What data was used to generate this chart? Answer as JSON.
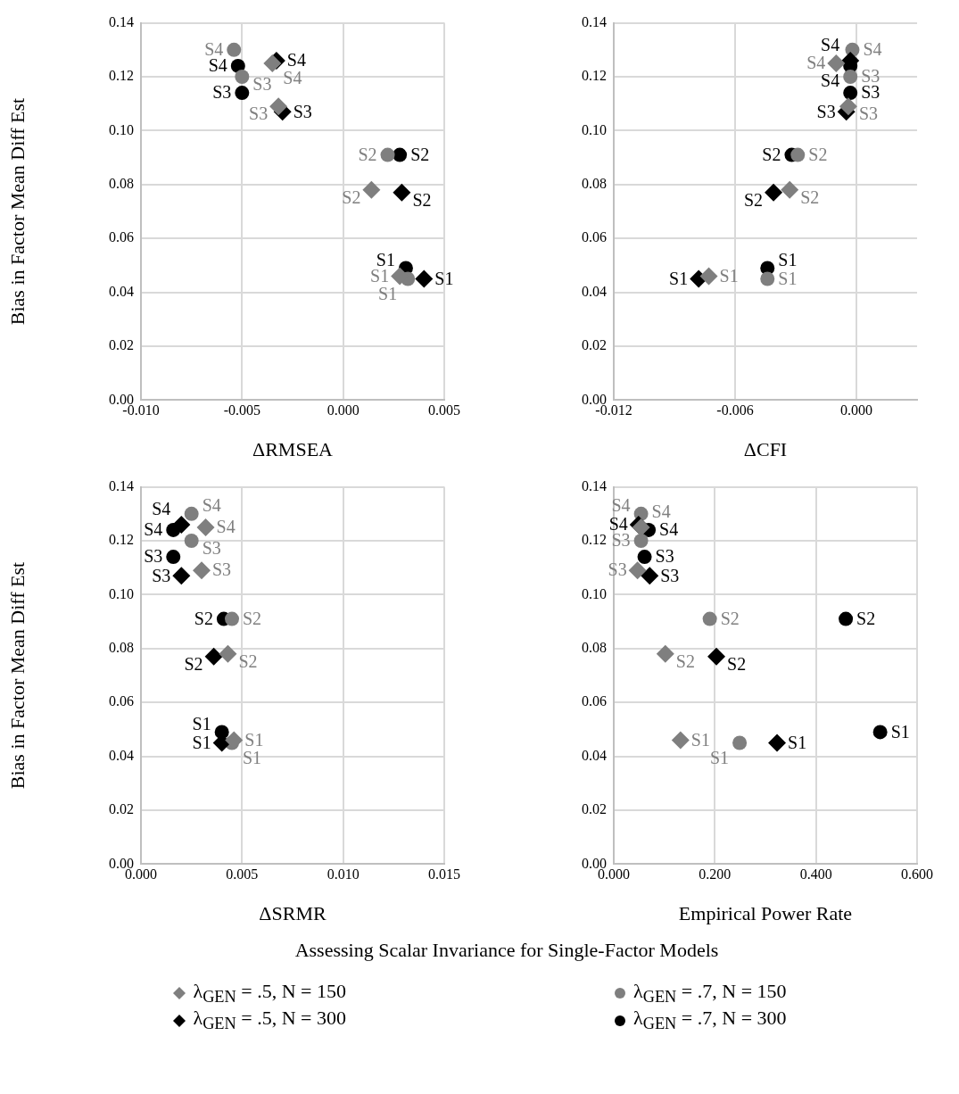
{
  "chart_data": [
    {
      "type": "scatter",
      "ylabel": "Bias in Factor Mean Diff Est",
      "xlabel": "ΔRMSEA",
      "grid": true,
      "legend": "bottom",
      "annotations": [
        "Assessing Scalar Invariance for Single-Factor Models"
      ],
      "xlim": [
        -0.01,
        0.005
      ],
      "xticks": [
        {
          "value": -0.01,
          "label": "-0.010"
        },
        {
          "value": -0.005,
          "label": "-0.005"
        },
        {
          "value": 0,
          "label": "0.000"
        },
        {
          "value": 0.005,
          "label": "0.005"
        }
      ],
      "ylim": [
        0,
        0.14
      ],
      "yticks": [
        {
          "value": 0,
          "label": "0.00"
        },
        {
          "value": 0.02,
          "label": "0.02"
        },
        {
          "value": 0.04,
          "label": "0.04"
        },
        {
          "value": 0.06,
          "label": "0.06"
        },
        {
          "value": 0.08,
          "label": "0.08"
        },
        {
          "value": 0.1,
          "label": "0.10"
        },
        {
          "value": 0.12,
          "label": "0.12"
        },
        {
          "value": 0.14,
          "label": "0.14"
        }
      ],
      "series": [
        {
          "name": "λ$_{GEN}$ = .5, N = 150",
          "color": "#7f7f7f",
          "marker": "diamond",
          "x": [
            0.0028,
            0.0014,
            -0.0032,
            -0.0035
          ],
          "values": [
            0.046,
            0.078,
            0.109,
            0.125
          ],
          "value_labels": [
            "S1",
            "S2",
            "S3",
            "S4"
          ]
        },
        {
          "name": "λ$_{GEN}$ = .5, N = 300",
          "color": "#000000",
          "marker": "diamond",
          "x": [
            0.004,
            0.0029,
            -0.003,
            -0.0033
          ],
          "values": [
            0.045,
            0.077,
            0.107,
            0.126
          ],
          "value_labels": [
            "S1",
            "S2",
            "S3",
            "S4"
          ]
        },
        {
          "name": "λ$_{GEN}$ = .7, N = 150",
          "color": "#7f7f7f",
          "marker": "circle",
          "x": [
            0.0032,
            0.0022,
            -0.005,
            -0.0054
          ],
          "values": [
            0.045,
            0.091,
            0.12,
            0.13
          ],
          "value_labels": [
            "S1",
            "S2",
            "S3",
            "S4"
          ]
        },
        {
          "name": "λ$_{GEN}$ = .7, N = 300",
          "color": "#000000",
          "marker": "circle",
          "x": [
            0.0031,
            0.0028,
            -0.005,
            -0.0052
          ],
          "values": [
            0.049,
            0.091,
            0.114,
            0.124
          ],
          "value_labels": [
            "S1",
            "S2",
            "S3",
            "S4"
          ]
        }
      ]
    },
    {
      "type": "scatter",
      "xlabel": "ΔCFI",
      "grid": true,
      "xlim": [
        -0.012,
        0.003
      ],
      "xticks": [
        {
          "value": -0.012,
          "label": "-0.012"
        },
        {
          "value": -0.006,
          "label": "-0.006"
        },
        {
          "value": 0,
          "label": "0.000"
        }
      ],
      "ylim": [
        0,
        0.14
      ],
      "yticks": [
        {
          "value": 0,
          "label": "0.00"
        },
        {
          "value": 0.02,
          "label": "0.02"
        },
        {
          "value": 0.04,
          "label": "0.04"
        },
        {
          "value": 0.06,
          "label": "0.06"
        },
        {
          "value": 0.08,
          "label": "0.08"
        },
        {
          "value": 0.1,
          "label": "0.10"
        },
        {
          "value": 0.12,
          "label": "0.12"
        },
        {
          "value": 0.14,
          "label": "0.14"
        }
      ],
      "series": [
        {
          "color": "#7f7f7f",
          "marker": "diamond",
          "x": [
            -0.0073,
            -0.0033,
            -0.0004,
            -0.001
          ],
          "values": [
            0.046,
            0.078,
            0.109,
            0.125
          ],
          "value_labels": [
            "S1",
            "S2",
            "S3",
            "S4"
          ]
        },
        {
          "color": "#000000",
          "marker": "diamond",
          "x": [
            -0.0078,
            -0.0041,
            -0.0005,
            -0.0003
          ],
          "values": [
            0.045,
            0.077,
            0.107,
            0.126
          ],
          "value_labels": [
            "S1",
            "S2",
            "S3",
            "S4"
          ]
        },
        {
          "color": "#7f7f7f",
          "marker": "circle",
          "x": [
            -0.0044,
            -0.0029,
            -0.0003,
            -0.0002
          ],
          "values": [
            0.045,
            0.091,
            0.12,
            0.13
          ],
          "value_labels": [
            "S1",
            "S2",
            "S3",
            "S4"
          ]
        },
        {
          "color": "#000000",
          "marker": "circle",
          "x": [
            -0.0044,
            -0.0032,
            -0.0003,
            -0.0003
          ],
          "values": [
            0.049,
            0.091,
            0.114,
            0.124
          ],
          "value_labels": [
            "S1",
            "S2",
            "S3",
            "S4"
          ]
        }
      ]
    },
    {
      "type": "scatter",
      "ylabel": "Bias in Factor Mean Diff Est",
      "xlabel": "ΔSRMR",
      "grid": true,
      "xlim": [
        0,
        0.015
      ],
      "xticks": [
        {
          "value": 0,
          "label": "0.000"
        },
        {
          "value": 0.005,
          "label": "0.005"
        },
        {
          "value": 0.01,
          "label": "0.010"
        },
        {
          "value": 0.015,
          "label": "0.015"
        }
      ],
      "ylim": [
        0,
        0.14
      ],
      "yticks": [
        {
          "value": 0,
          "label": "0.00"
        },
        {
          "value": 0.02,
          "label": "0.02"
        },
        {
          "value": 0.04,
          "label": "0.04"
        },
        {
          "value": 0.06,
          "label": "0.06"
        },
        {
          "value": 0.08,
          "label": "0.08"
        },
        {
          "value": 0.1,
          "label": "0.10"
        },
        {
          "value": 0.12,
          "label": "0.12"
        },
        {
          "value": 0.14,
          "label": "0.14"
        }
      ],
      "series": [
        {
          "color": "#7f7f7f",
          "marker": "diamond",
          "x": [
            0.0046,
            0.0043,
            0.003,
            0.0032
          ],
          "values": [
            0.046,
            0.078,
            0.109,
            0.125
          ],
          "value_labels": [
            "S1",
            "S2",
            "S3",
            "S4"
          ]
        },
        {
          "color": "#000000",
          "marker": "diamond",
          "x": [
            0.004,
            0.0036,
            0.002,
            0.002
          ],
          "values": [
            0.045,
            0.077,
            0.107,
            0.126
          ],
          "value_labels": [
            "S1",
            "S2",
            "S3",
            "S4"
          ]
        },
        {
          "color": "#7f7f7f",
          "marker": "circle",
          "x": [
            0.0045,
            0.0045,
            0.0025,
            0.0025
          ],
          "values": [
            0.045,
            0.091,
            0.12,
            0.13
          ],
          "value_labels": [
            "S1",
            "S2",
            "S3",
            "S4"
          ]
        },
        {
          "color": "#000000",
          "marker": "circle",
          "x": [
            0.004,
            0.0041,
            0.0016,
            0.0016
          ],
          "values": [
            0.049,
            0.091,
            0.114,
            0.124
          ],
          "value_labels": [
            "S1",
            "S2",
            "S3",
            "S4"
          ]
        }
      ]
    },
    {
      "type": "scatter",
      "xlabel": "Empirical Power Rate",
      "grid": true,
      "xlim": [
        0,
        0.6
      ],
      "xticks": [
        {
          "value": 0,
          "label": "0.000"
        },
        {
          "value": 0.2,
          "label": "0.200"
        },
        {
          "value": 0.4,
          "label": "0.400"
        },
        {
          "value": 0.6,
          "label": "0.600"
        }
      ],
      "ylim": [
        0,
        0.14
      ],
      "yticks": [
        {
          "value": 0,
          "label": "0.00"
        },
        {
          "value": 0.02,
          "label": "0.02"
        },
        {
          "value": 0.04,
          "label": "0.04"
        },
        {
          "value": 0.06,
          "label": "0.06"
        },
        {
          "value": 0.08,
          "label": "0.08"
        },
        {
          "value": 0.1,
          "label": "0.10"
        },
        {
          "value": 0.12,
          "label": "0.12"
        },
        {
          "value": 0.14,
          "label": "0.14"
        }
      ],
      "series": [
        {
          "color": "#7f7f7f",
          "marker": "diamond",
          "x": [
            0.132,
            0.102,
            0.047,
            0.054
          ],
          "values": [
            0.046,
            0.078,
            0.109,
            0.125
          ],
          "value_labels": [
            "S1",
            "S2",
            "S3",
            "S4"
          ]
        },
        {
          "color": "#000000",
          "marker": "diamond",
          "x": [
            0.323,
            0.203,
            0.071,
            0.049
          ],
          "values": [
            0.045,
            0.077,
            0.107,
            0.126
          ],
          "value_labels": [
            "S1",
            "S2",
            "S3",
            "S4"
          ]
        },
        {
          "color": "#7f7f7f",
          "marker": "circle",
          "x": [
            0.249,
            0.19,
            0.054,
            0.054
          ],
          "values": [
            0.045,
            0.091,
            0.12,
            0.13
          ],
          "value_labels": [
            "S1",
            "S2",
            "S3",
            "S4"
          ]
        },
        {
          "color": "#000000",
          "marker": "circle",
          "x": [
            0.527,
            0.459,
            0.061,
            0.069
          ],
          "values": [
            0.049,
            0.091,
            0.114,
            0.124
          ],
          "value_labels": [
            "S1",
            "S2",
            "S3",
            "S4"
          ]
        }
      ]
    }
  ]
}
